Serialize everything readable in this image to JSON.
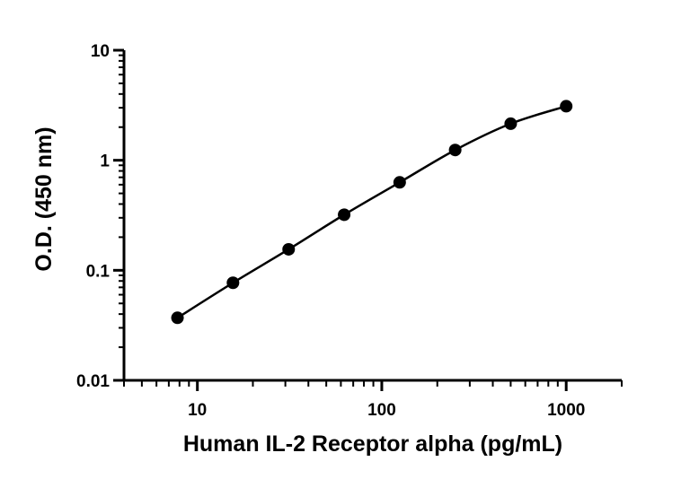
{
  "chart_data": {
    "type": "scatter",
    "title": "",
    "xlabel": "Human IL-2 Receptor alpha (pg/mL)",
    "ylabel": "O.D. (450 nm)",
    "xscale": "log",
    "yscale": "log",
    "xlim": [
      4,
      2000
    ],
    "ylim": [
      0.01,
      10
    ],
    "x_ticks": [
      10,
      100,
      1000
    ],
    "x_tick_labels": [
      "10",
      "100",
      "1000"
    ],
    "y_ticks": [
      0.01,
      0.1,
      1,
      10
    ],
    "y_tick_labels": [
      "0.01",
      "0.1",
      "1",
      "10"
    ],
    "grid": false,
    "legend": "none",
    "series": [
      {
        "x": [
          7.8,
          15.6,
          31.25,
          62.5,
          125,
          250,
          500,
          1000
        ],
        "y": [
          0.037,
          0.077,
          0.155,
          0.32,
          0.63,
          1.24,
          2.15,
          3.1
        ],
        "marker": "circle",
        "color": "#000000",
        "fit_curve": true
      }
    ]
  }
}
